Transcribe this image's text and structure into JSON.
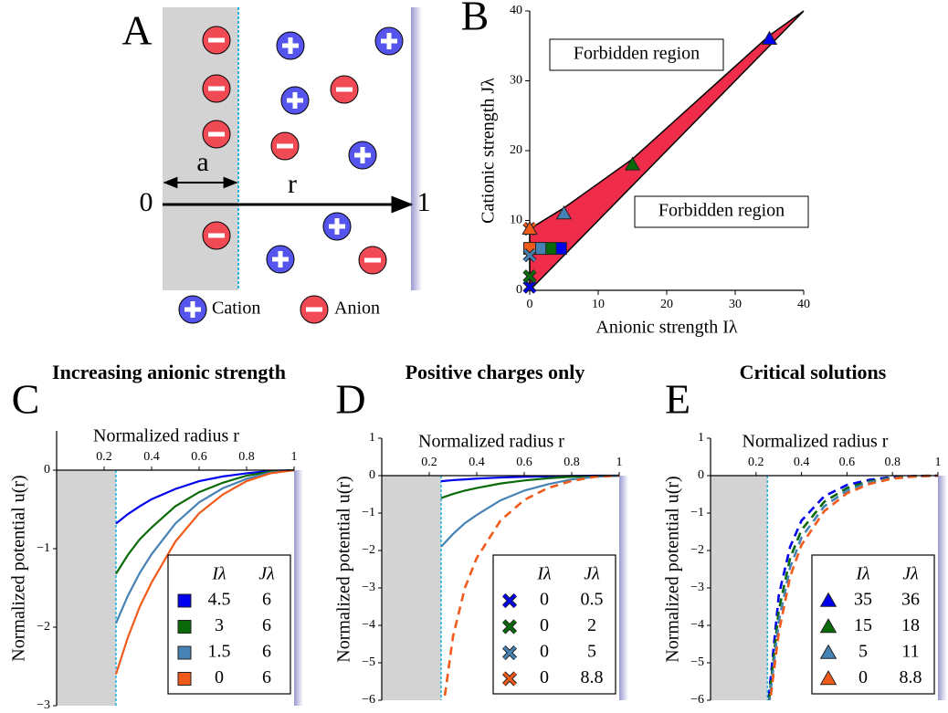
{
  "diagram": {
    "panel": "A",
    "labels": {
      "a": "a",
      "r": "r",
      "origin": "0",
      "end": "1"
    },
    "legend": [
      "Cation",
      "Anion"
    ]
  },
  "chart_data": [
    {
      "type": "scatter",
      "panel": "B",
      "xlabel": "Anionic strength Iλ",
      "ylabel": "Cationic strength Jλ",
      "xlim": [
        0,
        40
      ],
      "ylim": [
        0,
        40
      ],
      "xticks": [
        0,
        10,
        20,
        30,
        40
      ],
      "yticks": [
        0,
        10,
        20,
        30,
        40
      ],
      "annotations": [
        "Forbidden region",
        "Forbidden region"
      ],
      "region": {
        "color": "#ef2d4b",
        "x": [
          0,
          40,
          35,
          15,
          5,
          0
        ],
        "y": [
          0,
          40,
          36.5,
          18.8,
          11.8,
          8.8
        ]
      },
      "series": [
        {
          "marker": "square",
          "colors": [
            "#0000ee",
            "#0a6a0a",
            "#4682b4",
            "#f05a1a"
          ],
          "x": [
            4.5,
            3,
            1.5,
            0
          ],
          "y": [
            6,
            6,
            6,
            6
          ]
        },
        {
          "marker": "cross",
          "colors": [
            "#0000ee",
            "#0a6a0a",
            "#4682b4",
            "#f05a1a"
          ],
          "x": [
            0,
            0,
            0,
            0
          ],
          "y": [
            0.5,
            2,
            5,
            8.8
          ]
        },
        {
          "marker": "triangle",
          "colors": [
            "#0000ee",
            "#0a6a0a",
            "#4682b4",
            "#f05a1a"
          ],
          "x": [
            35,
            15,
            5,
            0
          ],
          "y": [
            36,
            18,
            11,
            8.8
          ]
        }
      ]
    },
    {
      "type": "line",
      "panel": "C",
      "title": "Increasing anionic strength",
      "xlabel": "Normalized radius r",
      "ylabel": "Normalized potential u(r)",
      "x": [
        0.25,
        0.3,
        0.35,
        0.4,
        0.5,
        0.6,
        0.7,
        0.8,
        0.9,
        1
      ],
      "xlim": [
        0,
        1
      ],
      "ylim": [
        -3,
        0.5
      ],
      "xticks": [
        0.2,
        0.4,
        0.6,
        0.8,
        1
      ],
      "yticks": [
        {
          "value": -3,
          "label": "−3"
        },
        {
          "value": -2,
          "label": "−2"
        },
        {
          "value": -1,
          "label": "−1"
        },
        0
      ],
      "shade_to": 0.25,
      "legend_headers": [
        "Iλ",
        "Jλ"
      ],
      "series": [
        {
          "color": "#0000ee",
          "marker": "square",
          "dash": false,
          "legend_values": [
            4.5,
            6
          ],
          "values": [
            -0.68,
            -0.56,
            -0.46,
            -0.37,
            -0.24,
            -0.14,
            -0.08,
            -0.04,
            -0.01,
            0
          ]
        },
        {
          "color": "#0a6a0a",
          "marker": "square",
          "dash": false,
          "legend_values": [
            3,
            6
          ],
          "values": [
            -1.32,
            -1.08,
            -0.88,
            -0.73,
            -0.46,
            -0.28,
            -0.16,
            -0.07,
            -0.02,
            0
          ]
        },
        {
          "color": "#4682b4",
          "marker": "square",
          "dash": false,
          "legend_values": [
            1.5,
            6
          ],
          "values": [
            -1.95,
            -1.6,
            -1.31,
            -1.07,
            -0.68,
            -0.41,
            -0.23,
            -0.11,
            -0.03,
            0
          ]
        },
        {
          "color": "#f05a1a",
          "marker": "square",
          "dash": false,
          "legend_values": [
            0,
            6
          ],
          "values": [
            -2.6,
            -2.13,
            -1.74,
            -1.43,
            -0.91,
            -0.55,
            -0.31,
            -0.14,
            -0.04,
            0
          ]
        }
      ]
    },
    {
      "type": "line",
      "panel": "D",
      "title": "Positive charges only",
      "xlabel": "Normalized radius r",
      "ylabel": "Normalized potential u(r)",
      "x": [
        0.25,
        0.3,
        0.35,
        0.4,
        0.5,
        0.6,
        0.7,
        0.8,
        0.9,
        1
      ],
      "xlim": [
        0,
        1
      ],
      "ylim": [
        -6,
        1
      ],
      "xticks": [
        0.2,
        0.4,
        0.6,
        0.8,
        1
      ],
      "yticks": [
        {
          "value": -6,
          "label": "−6"
        },
        {
          "value": -5,
          "label": "−5"
        },
        {
          "value": -4,
          "label": "−4"
        },
        {
          "value": -3,
          "label": "−3"
        },
        {
          "value": -2,
          "label": "−2"
        },
        {
          "value": -1,
          "label": "−1"
        },
        0,
        1
      ],
      "shade_to": 0.25,
      "legend_headers": [
        "Iλ",
        "Jλ"
      ],
      "series": [
        {
          "color": "#0000ee",
          "marker": "cross",
          "dash": false,
          "legend_values": [
            0,
            0.5
          ],
          "values": [
            -0.15,
            -0.12,
            -0.1,
            -0.08,
            -0.05,
            -0.03,
            -0.02,
            -0.01,
            0,
            0
          ]
        },
        {
          "color": "#0a6a0a",
          "marker": "cross",
          "dash": false,
          "legend_values": [
            0,
            2
          ],
          "values": [
            -0.6,
            -0.49,
            -0.4,
            -0.33,
            -0.21,
            -0.13,
            -0.07,
            -0.03,
            -0.01,
            0
          ]
        },
        {
          "color": "#4682b4",
          "marker": "cross",
          "dash": false,
          "legend_values": [
            0,
            5
          ],
          "values": [
            -1.9,
            -1.56,
            -1.27,
            -1.05,
            -0.66,
            -0.4,
            -0.23,
            -0.1,
            -0.03,
            0
          ]
        },
        {
          "color": "#f05a1a",
          "marker": "cross",
          "dash": true,
          "legend_values": [
            0,
            8.8
          ],
          "values": [
            -6.6,
            -4.3,
            -3,
            -2.2,
            -1.2,
            -0.65,
            -0.33,
            -0.14,
            -0.03,
            0
          ]
        }
      ]
    },
    {
      "type": "line",
      "panel": "E",
      "title": "Critical solutions",
      "xlabel": "Normalized radius r",
      "ylabel": "Normalized potential u(r)",
      "x": [
        0.25,
        0.3,
        0.35,
        0.4,
        0.5,
        0.6,
        0.7,
        0.8,
        0.9,
        1
      ],
      "xlim": [
        0,
        1
      ],
      "ylim": [
        -6,
        1
      ],
      "xticks": [
        0.2,
        0.4,
        0.6,
        0.8,
        1
      ],
      "yticks": [
        {
          "value": -6,
          "label": "−6"
        },
        {
          "value": -5,
          "label": "−5"
        },
        {
          "value": -4,
          "label": "−4"
        },
        {
          "value": -3,
          "label": "−3"
        },
        {
          "value": -2,
          "label": "−2"
        },
        {
          "value": -1,
          "label": "−1"
        },
        0,
        1
      ],
      "shade_to": 0.25,
      "legend_headers": [
        "Iλ",
        "Jλ"
      ],
      "series": [
        {
          "color": "#0000ee",
          "marker": "triangle",
          "dash": true,
          "legend_values": [
            35,
            36
          ],
          "values": [
            -6.3,
            -3.2,
            -1.9,
            -1.2,
            -0.55,
            -0.25,
            -0.11,
            -0.04,
            -0.01,
            0
          ]
        },
        {
          "color": "#0a6a0a",
          "marker": "triangle",
          "dash": true,
          "legend_values": [
            15,
            18
          ],
          "values": [
            -6.4,
            -3.6,
            -2.2,
            -1.45,
            -0.7,
            -0.33,
            -0.15,
            -0.06,
            -0.01,
            0
          ]
        },
        {
          "color": "#4682b4",
          "marker": "triangle",
          "dash": true,
          "legend_values": [
            5,
            11
          ],
          "values": [
            -6.5,
            -3.9,
            -2.45,
            -1.65,
            -0.82,
            -0.4,
            -0.18,
            -0.07,
            -0.02,
            0
          ]
        },
        {
          "color": "#f05a1a",
          "marker": "triangle",
          "dash": true,
          "legend_values": [
            0,
            8.8
          ],
          "values": [
            -6.6,
            -4.2,
            -2.7,
            -1.85,
            -0.95,
            -0.47,
            -0.22,
            -0.08,
            -0.02,
            0
          ]
        }
      ]
    }
  ]
}
